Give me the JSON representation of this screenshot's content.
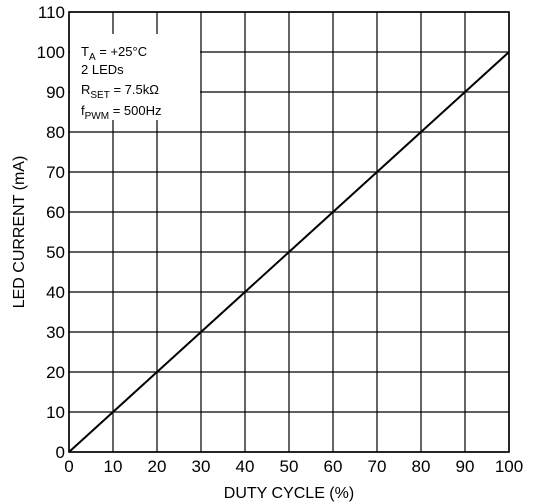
{
  "chart_data": {
    "type": "line",
    "title": "",
    "xlabel": "DUTY CYCLE (%)",
    "ylabel": "LED CURRENT (mA)",
    "xlim": [
      0,
      100
    ],
    "ylim": [
      0,
      110
    ],
    "x_ticks": [
      0,
      10,
      20,
      30,
      40,
      50,
      60,
      70,
      80,
      90,
      100
    ],
    "y_ticks": [
      0,
      10,
      20,
      30,
      40,
      50,
      60,
      70,
      80,
      90,
      100,
      110
    ],
    "grid": true,
    "legend": "none",
    "series": [
      {
        "x": [
          0,
          10,
          20,
          30,
          40,
          50,
          60,
          70,
          80,
          90,
          100
        ],
        "y": [
          0,
          10,
          20,
          30,
          40,
          50,
          60,
          70,
          80,
          90,
          100
        ]
      }
    ],
    "annotations": [
      {
        "main": "T",
        "sub": "A",
        "rest": " = +25°C"
      },
      {
        "main": "2 LEDs",
        "sub": "",
        "rest": ""
      },
      {
        "main": "R",
        "sub": "SET",
        "rest": " = 7.5kΩ"
      },
      {
        "main": "f",
        "sub": "PWM",
        "rest": " = 500Hz"
      }
    ],
    "colors": {
      "line": "#000000",
      "grid": "#000000",
      "background": "#ffffff"
    }
  }
}
